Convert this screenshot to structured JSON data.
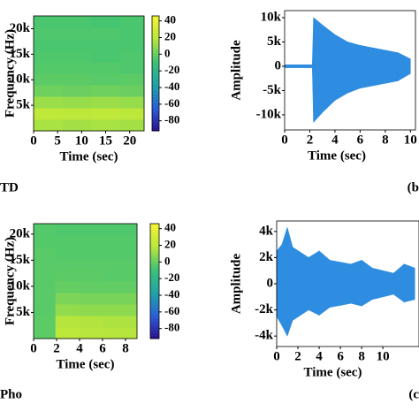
{
  "chart_data": [
    {
      "type": "heatmap",
      "ylabel": "Frequency (Hz)",
      "xlabel": "Time (sec)",
      "caption": "TD",
      "xlim": [
        0,
        23
      ],
      "xticks": [
        0,
        5,
        10,
        15,
        20
      ],
      "ylim": [
        0,
        22500
      ],
      "yticks": [
        {
          "value": 5000,
          "label": "5k"
        },
        {
          "value": 10000,
          "label": "10k"
        },
        {
          "value": 15000,
          "label": "15k"
        },
        {
          "value": 20000,
          "label": "20k"
        }
      ],
      "x_edges": [
        0,
        6,
        12,
        18,
        23
      ],
      "y_edges": [
        0,
        2250,
        4500,
        6750,
        9000,
        11250,
        13500,
        15750,
        18000,
        20250,
        22500
      ],
      "z": [
        [
          15,
          14,
          15,
          14
        ],
        [
          22,
          21,
          22,
          20
        ],
        [
          12,
          11,
          12,
          11
        ],
        [
          2,
          1,
          2,
          1
        ],
        [
          -2,
          -2,
          -3,
          -2
        ],
        [
          -4,
          -4,
          -4,
          -5
        ],
        [
          -5,
          -5,
          -6,
          -5
        ],
        [
          -6,
          -6,
          -6,
          -6
        ],
        [
          -5,
          -5,
          -5,
          -6
        ],
        [
          -6,
          -6,
          -7,
          -6
        ],
        [
          -6,
          -6,
          -6,
          -6
        ]
      ],
      "clim": [
        -92,
        46
      ],
      "cticks": [
        40,
        20,
        0,
        -20,
        -40,
        -60,
        -80
      ],
      "colormap": [
        "#2b0f8c",
        "#2a5fd8",
        "#1fa3a8",
        "#3cc275",
        "#b8e63c",
        "#f5f531"
      ]
    },
    {
      "type": "waveform",
      "ylabel": "Amplitude",
      "xlabel": "Time (sec)",
      "caption": "(b",
      "xlim": [
        0,
        10.4
      ],
      "xticks": [
        0,
        2,
        4,
        6,
        8,
        10
      ],
      "ylim": [
        -13100,
        11450
      ],
      "yticks": [
        {
          "value": 10000,
          "label": "10k"
        },
        {
          "value": 5000,
          "label": "5k"
        },
        0,
        {
          "value": -5000,
          "label": "-5k"
        },
        {
          "value": -10000,
          "label": "-10k"
        }
      ],
      "x": [
        0,
        2.2,
        2.3,
        3,
        4,
        5,
        6,
        7,
        8,
        9,
        10
      ],
      "upper": [
        300,
        300,
        10000,
        8500,
        6500,
        5000,
        4300,
        3800,
        3300,
        2800,
        1500
      ],
      "lower": [
        -300,
        -300,
        -11500,
        -9500,
        -7000,
        -5500,
        -4500,
        -4000,
        -3500,
        -3000,
        -1500
      ],
      "color": "#2e8de0"
    },
    {
      "type": "heatmap",
      "ylabel": "Frequency (Hz)",
      "xlabel": "Time (sec)",
      "caption": "Pho",
      "xlim": [
        0,
        9
      ],
      "xticks": [
        0,
        2,
        4,
        6,
        8
      ],
      "ylim": [
        0,
        22000
      ],
      "yticks": [
        {
          "value": 5000,
          "label": "5k"
        },
        {
          "value": 10000,
          "label": "10k"
        },
        {
          "value": 15000,
          "label": "15k"
        },
        {
          "value": 20000,
          "label": "20k"
        }
      ],
      "x_edges": [
        0,
        1.9,
        4,
        6,
        9
      ],
      "y_edges": [
        0,
        2200,
        4400,
        6600,
        8800,
        11000,
        13200,
        15400,
        17600,
        19800,
        22000
      ],
      "z": [
        [
          -2,
          20,
          19,
          18
        ],
        [
          -2,
          18,
          17,
          16
        ],
        [
          -3,
          10,
          9,
          9
        ],
        [
          -3,
          5,
          4,
          4
        ],
        [
          -3,
          0,
          -1,
          -1
        ],
        [
          -3,
          -2,
          -2,
          -3
        ],
        [
          -3,
          -3,
          -3,
          -3
        ],
        [
          -3,
          -4,
          -4,
          -4
        ],
        [
          -4,
          -4,
          -4,
          -4
        ],
        [
          -4,
          -5,
          -5,
          -5
        ],
        [
          -4,
          -5,
          -5,
          -5
        ]
      ],
      "clim": [
        -92,
        46
      ],
      "cticks": [
        40,
        20,
        0,
        -20,
        -40,
        -60,
        -80
      ],
      "colormap": [
        "#2b0f8c",
        "#2a5fd8",
        "#1fa3a8",
        "#3cc275",
        "#b8e63c",
        "#f5f531"
      ]
    },
    {
      "type": "waveform",
      "ylabel": "Amplitude",
      "xlabel": "Time (sec)",
      "caption": "(c",
      "xlim": [
        0,
        13.4
      ],
      "xticks": [
        0,
        2,
        4,
        6,
        8,
        10
      ],
      "ylim": [
        -4800,
        4800
      ],
      "yticks": [
        {
          "value": 4000,
          "label": "4k"
        },
        {
          "value": 2000,
          "label": "2k"
        },
        0,
        {
          "value": -2000,
          "label": "-2k"
        },
        {
          "value": -4000,
          "label": "-4k"
        }
      ],
      "x": [
        0,
        0.5,
        1,
        1.5,
        3,
        4,
        5,
        7,
        8,
        9,
        11,
        12,
        13
      ],
      "upper": [
        2500,
        3000,
        4300,
        2800,
        2000,
        2500,
        1800,
        1500,
        1800,
        1200,
        800,
        1500,
        1200
      ],
      "lower": [
        -2500,
        -3200,
        -4000,
        -2800,
        -2000,
        -2400,
        -1800,
        -1500,
        -1700,
        -1200,
        -800,
        -1400,
        -1200
      ],
      "color": "#2e8de0"
    }
  ]
}
